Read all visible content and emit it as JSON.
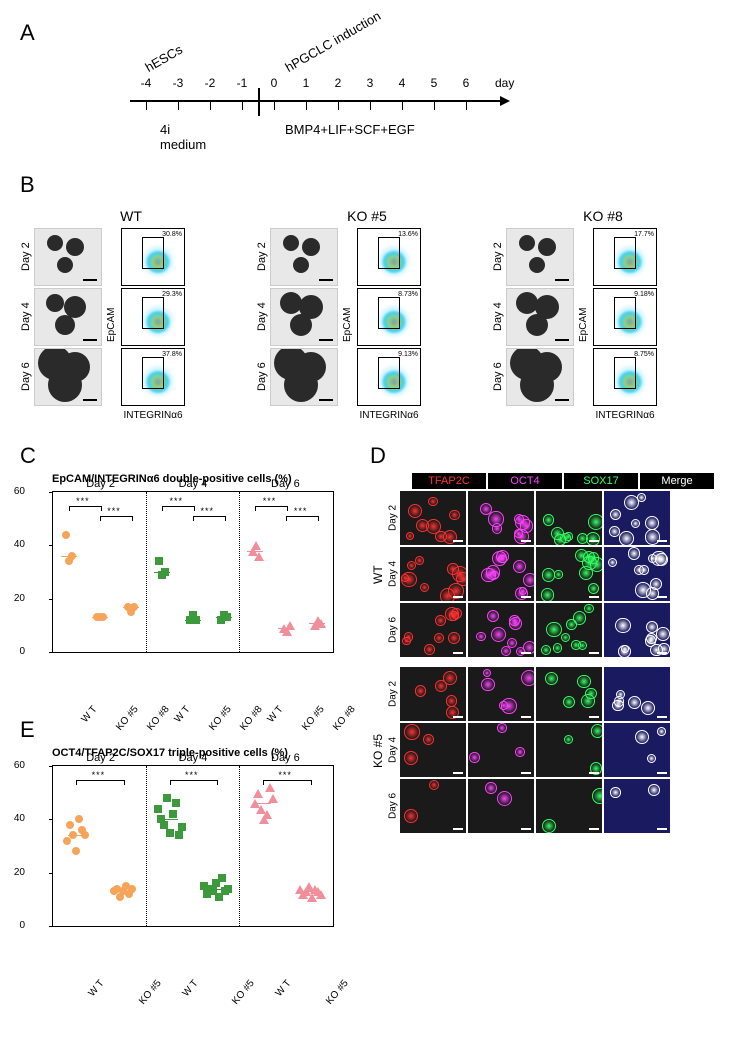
{
  "panel_labels": {
    "A": "A",
    "B": "B",
    "C": "C",
    "D": "D",
    "E": "E"
  },
  "panel_a": {
    "top_left": "hESCs",
    "top_right": "hPGCLC induction",
    "days": [
      "-4",
      "-3",
      "-2",
      "-1",
      "0",
      "1",
      "2",
      "3",
      "4",
      "5",
      "6"
    ],
    "day_label": "day",
    "medium_left": "4i medium",
    "medium_right": "BMP4+LIF+SCF+EGF",
    "axis_color": "#000000"
  },
  "panel_b": {
    "genotypes": [
      "WT",
      "KO #5",
      "KO #8"
    ],
    "days": [
      "Day 2",
      "Day 4",
      "Day 6"
    ],
    "y_axis": "EpCAM",
    "x_axis": "INTEGRINα6",
    "percents": [
      [
        "30.8%",
        "29.3%",
        "37.8%"
      ],
      [
        "13.6%",
        "8.73%",
        "9.13%"
      ],
      [
        "17.7%",
        "9.18%",
        "8.75%"
      ]
    ],
    "blob_sizes": [
      [
        [
          16,
          18,
          16
        ],
        [
          18,
          22,
          20
        ],
        [
          34,
          30,
          34
        ]
      ],
      [
        [
          16,
          18,
          16
        ],
        [
          22,
          24,
          22
        ],
        [
          34,
          30,
          34
        ]
      ],
      [
        [
          16,
          18,
          16
        ],
        [
          22,
          24,
          22
        ],
        [
          34,
          30,
          34
        ]
      ]
    ]
  },
  "panel_c": {
    "title": "EpCAM/INTEGRINα6 double-positive cells (%)",
    "day_labels": [
      "Day 2",
      "Day 4",
      "Day 6"
    ],
    "x_labels": [
      "W T",
      "KO #5",
      "KO #8",
      "W T",
      "KO #5",
      "KO #8",
      "W T",
      "KO #5",
      "KO #8"
    ],
    "y_max": 60,
    "y_ticks": [
      0,
      20,
      40,
      60
    ],
    "y_tick_labels": [
      "0",
      "20",
      "40",
      "60"
    ],
    "colors": {
      "d2": "#f5a45a",
      "d4": "#3c9a3c",
      "d6": "#f08e9c"
    },
    "data": {
      "d2": {
        "WT": [
          44,
          34,
          36
        ],
        "KO5": [
          13,
          13,
          13
        ],
        "KO8": [
          17,
          15,
          17
        ]
      },
      "d4": {
        "WT": [
          34,
          29,
          30
        ],
        "KO5": [
          12,
          14,
          12
        ],
        "KO8": [
          12,
          14,
          13
        ]
      },
      "d6": {
        "WT": [
          38,
          40,
          36
        ],
        "KO5": [
          9,
          8,
          10
        ],
        "KO8": [
          10,
          12,
          11
        ]
      }
    },
    "sig": "***"
  },
  "panel_e": {
    "title": "OCT4/TFAP2C/SOX17 triple-positive cells (%)",
    "day_labels": [
      "Day 2",
      "Day 4",
      "Day 6"
    ],
    "x_labels": [
      "W T",
      "KO #5",
      "W T",
      "KO #5",
      "W T",
      "KO #5"
    ],
    "y_max": 60,
    "y_ticks": [
      0,
      20,
      40,
      60
    ],
    "y_tick_labels": [
      "0",
      "20",
      "40",
      "60"
    ],
    "colors": {
      "d2": "#f5a45a",
      "d4": "#3c9a3c",
      "d6": "#f08e9c"
    },
    "data": {
      "d2": {
        "WT": [
          32,
          38,
          34,
          28,
          40,
          36,
          34
        ],
        "KO5": [
          13,
          14,
          11,
          13,
          15,
          12,
          14
        ]
      },
      "d4": {
        "WT": [
          44,
          40,
          38,
          48,
          35,
          42,
          46,
          34,
          37
        ],
        "KO5": [
          15,
          12,
          14,
          13,
          16,
          11,
          18,
          13,
          14
        ]
      },
      "d6": {
        "WT": [
          46,
          50,
          44,
          40,
          42,
          52,
          48
        ],
        "KO5": [
          14,
          12,
          13,
          15,
          11,
          14,
          13,
          12
        ]
      }
    },
    "sig": "***"
  },
  "panel_d": {
    "channels": [
      "TFAP2C",
      "OCT4",
      "SOX17",
      "Merge"
    ],
    "channel_colors": [
      "#ff3030",
      "#ff40ff",
      "#30ff60",
      "#ffffff"
    ],
    "merge_bg": "#1a1a60",
    "genotypes": [
      "WT",
      "KO #5"
    ],
    "days": [
      "Day 2",
      "Day 4",
      "Day 6"
    ]
  },
  "figure_background": "#ffffff"
}
